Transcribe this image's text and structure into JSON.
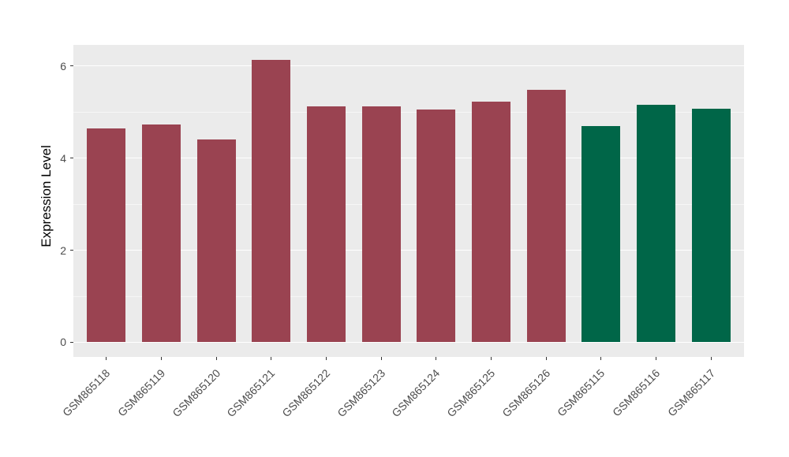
{
  "chart_data": {
    "type": "bar",
    "title": "",
    "xlabel": "",
    "ylabel": "Expression Level",
    "categories": [
      "GSM865118",
      "GSM865119",
      "GSM865120",
      "GSM865121",
      "GSM865122",
      "GSM865123",
      "GSM865124",
      "GSM865125",
      "GSM865126",
      "GSM865115",
      "GSM865116",
      "GSM865117"
    ],
    "values": [
      4.65,
      4.73,
      4.4,
      6.14,
      5.13,
      5.12,
      5.05,
      5.23,
      5.48,
      4.69,
      5.16,
      5.07
    ],
    "colors": [
      "#9A4351",
      "#9A4351",
      "#9A4351",
      "#9A4351",
      "#9A4351",
      "#9A4351",
      "#9A4351",
      "#9A4351",
      "#9A4351",
      "#006648",
      "#006648",
      "#006648"
    ],
    "group_colors": {
      "maroon_group": "#9A4351",
      "green_group": "#006648"
    },
    "yticks": [
      0,
      2,
      4,
      6
    ],
    "yticks_minor": [
      1,
      3,
      5
    ],
    "ylim": [
      -0.317,
      6.46
    ],
    "x_label_angle_deg": 45,
    "grid": "on",
    "legend_position": "none",
    "panel_bg": "#EBEBEB",
    "grid_color": "#FFFFFF",
    "axis_text_color": "#4D4D4D",
    "tick_color": "#333333"
  }
}
